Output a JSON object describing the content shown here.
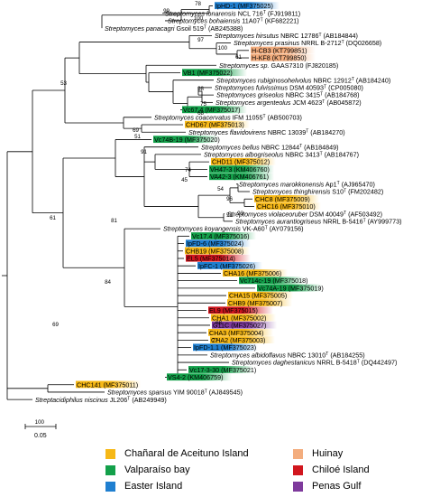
{
  "colors": {
    "chanaral": "#f6b817",
    "valparaiso": "#13a04a",
    "easter": "#1f7fd0",
    "huinay": "#f3ad7e",
    "chiloe": "#d1161e",
    "penas": "#7e3a9c"
  },
  "scale_label": "0.05",
  "legend": [
    {
      "label": "Chañaral de Aceituno Island",
      "color_key": "chanaral"
    },
    {
      "label": "Huinay",
      "color_key": "huinay"
    },
    {
      "label": "Valparaíso bay",
      "color_key": "valparaiso"
    },
    {
      "label": "Chiloé Island",
      "color_key": "chiloe"
    },
    {
      "label": "Easter Island",
      "color_key": "easter"
    },
    {
      "label": "Penas Gulf",
      "color_key": "penas"
    }
  ],
  "taxa": [
    {
      "species": "",
      "strain": "IpHD-1",
      "acc": "(MF375025)",
      "color": "easter",
      "sup": ""
    },
    {
      "species": "Streptomyces",
      "strain": "lonarensis NCL 716",
      "acc": "(FJ919811)",
      "sup": "T"
    },
    {
      "species": "Streptomyces",
      "strain": "bohaiensis 11A07",
      "acc": "(KF682221)",
      "sup": "T"
    },
    {
      "species": "Streptomyces",
      "strain": "panacagri Gsoil 519",
      "acc": "(AB245388)",
      "sup": "T"
    },
    {
      "species": "Streptomyces",
      "strain": "hirsutus NBRC 12786",
      "acc": "(AB184844)",
      "sup": "T"
    },
    {
      "species": "Streptomyces",
      "strain": "prasinus NRRL B-2712",
      "acc": "(DQ026658)",
      "sup": "T"
    },
    {
      "species": "",
      "strain": "H-CB3",
      "acc": "(KT799851)",
      "color": "huinay"
    },
    {
      "species": "",
      "strain": "H-KF8",
      "acc": "(KT799850)",
      "color": "huinay"
    },
    {
      "species": "Streptomyces",
      "strain": "sp. GAAS7310",
      "acc": "(FJ820185)",
      "sup": ""
    },
    {
      "species": "",
      "strain": "VB1",
      "acc": "(MF375022)",
      "color": "valparaiso"
    },
    {
      "species": "Streptomyces",
      "strain": "rubiginosohelvolus NBRC 12912",
      "acc": "(AB184240)",
      "sup": "T"
    },
    {
      "species": "Streptomyces",
      "strain": "fulvissimus DSM 40593",
      "acc": "(CP005080)",
      "sup": "T"
    },
    {
      "species": "Streptomyces",
      "strain": "griseolus NBRC 3415",
      "acc": "(AB184768)",
      "sup": "T"
    },
    {
      "species": "Streptomyces",
      "strain": "argenteolus JCM 4623",
      "acc": "(AB045872)",
      "sup": "T"
    },
    {
      "species": "",
      "strain": "Vc67.4",
      "acc": "(MF375017)",
      "color": "valparaiso"
    },
    {
      "species": "Streptomyces",
      "strain": "coacervatus IFM 11055",
      "acc": "(AB500703)",
      "sup": "T"
    },
    {
      "species": "",
      "strain": "CHD67",
      "acc": "(MF375013)",
      "color": "chanaral"
    },
    {
      "species": "Streptomyces",
      "strain": "flavidovirens NBRC 13039",
      "acc": "(AB184270)",
      "sup": "T"
    },
    {
      "species": "",
      "strain": "Vc74B-19",
      "acc": "(MF375020)",
      "color": "valparaiso"
    },
    {
      "species": "Streptomyces",
      "strain": "bellus NBRC 12844",
      "acc": "(AB184849)",
      "sup": "T"
    },
    {
      "species": "Streptomyces",
      "strain": "albogriseolus NBRC 3413",
      "acc": "(AB184767)",
      "sup": "T"
    },
    {
      "species": "",
      "strain": "CHD11",
      "acc": "(MF375012)",
      "color": "chanaral"
    },
    {
      "species": "",
      "strain": "VH47-3",
      "acc": "(KM406760)",
      "color": "valparaiso"
    },
    {
      "species": "",
      "strain": "VA42-3",
      "acc": "(KM406761)",
      "color": "valparaiso"
    },
    {
      "species": "Streptomyces",
      "strain": "marokkonensis Ap1",
      "acc": "(AJ965470)",
      "sup": "T"
    },
    {
      "species": "Streptomyces",
      "strain": "thinghirensis S10",
      "acc": "(FM202482)",
      "sup": "T"
    },
    {
      "species": "",
      "strain": "CHC8",
      "acc": "(MF375009)",
      "color": "chanaral"
    },
    {
      "species": "",
      "strain": "CHC16",
      "acc": "(MF375010)",
      "color": "chanaral"
    },
    {
      "species": "Streptomyces",
      "strain": "violaceoruber DSM 40049",
      "acc": "(AF503492)",
      "sup": "T"
    },
    {
      "species": "Streptomyces",
      "strain": "aurantiogriseus NRRL B-5416",
      "acc": "(AY999773)",
      "sup": "T"
    },
    {
      "species": "Streptomyces",
      "strain": "koyangensis VK-A60",
      "acc": "(AY079156)",
      "sup": "T"
    },
    {
      "species": "",
      "strain": "Vc17.4",
      "acc": "(MF375016)",
      "color": "valparaiso"
    },
    {
      "species": "",
      "strain": "IpFD-6",
      "acc": "(MF375024)",
      "color": "easter"
    },
    {
      "species": "",
      "strain": "CHB19",
      "acc": "(MF375008)",
      "color": "chanaral"
    },
    {
      "species": "",
      "strain": "EL5",
      "acc": "(MF375014)",
      "color": "chiloe"
    },
    {
      "species": "",
      "strain": "IpFC-1",
      "acc": "(MF375026)",
      "color": "easter"
    },
    {
      "species": "",
      "strain": "CHA16",
      "acc": "(MF375006)",
      "color": "chanaral"
    },
    {
      "species": "",
      "strain": "Vc714c-19",
      "acc": "(MF375018)",
      "color": "valparaiso"
    },
    {
      "species": "",
      "strain": "Vc74A-19",
      "acc": "(MF375019)",
      "color": "valparaiso"
    },
    {
      "species": "",
      "strain": "CHA15",
      "acc": "(MF375005)",
      "color": "chanaral"
    },
    {
      "species": "",
      "strain": "CHB9",
      "acc": "(MF375007)",
      "color": "chanaral"
    },
    {
      "species": "",
      "strain": "EL9",
      "acc": "(MF375015)",
      "color": "chiloe"
    },
    {
      "species": "",
      "strain": "CHA1",
      "acc": "(MF375002)",
      "color": "chanaral"
    },
    {
      "species": "",
      "strain": "G11C",
      "acc": "(MF375027)",
      "color": "penas"
    },
    {
      "species": "",
      "strain": "CHA3",
      "acc": "(MF375004)",
      "color": "chanaral"
    },
    {
      "species": "",
      "strain": "CHA2",
      "acc": "(MF375003)",
      "color": "chanaral"
    },
    {
      "species": "",
      "strain": "IpFD-1.1",
      "acc": "(MF375023)",
      "color": "easter"
    },
    {
      "species": "Streptomyces",
      "strain": "albidoflavus NBRC 13010",
      "acc": "(AB184255)",
      "sup": "T"
    },
    {
      "species": "Streptomyces",
      "strain": "daghestanicus NRRL B-5418",
      "acc": "(DQ442497)",
      "sup": "T"
    },
    {
      "species": "",
      "strain": "Vc17-3-30",
      "acc": "(MF375021)",
      "color": "valparaiso"
    },
    {
      "species": "",
      "strain": "VS4-2",
      "acc": "(KM406759)",
      "color": "valparaiso"
    },
    {
      "species": "",
      "strain": "CHC141",
      "acc": "(MF375011)",
      "color": "chanaral"
    },
    {
      "species": "Streptomyces",
      "strain": "sparsus YIM 90018",
      "acc": "(AJ849545)",
      "sup": "T"
    },
    {
      "species": "Streptacidiphilus",
      "strain": "niscinus JL206",
      "acc": "(AB249949)",
      "sup": "T"
    }
  ],
  "bootstrap": [
    "99",
    "78",
    "100",
    "97",
    "100",
    "61",
    "75",
    "98",
    "53",
    "68",
    "69",
    "51",
    "91",
    "74",
    "45",
    "54",
    "96",
    "93",
    "51",
    "61",
    "81",
    "84",
    "68",
    "77",
    "69",
    "100"
  ]
}
